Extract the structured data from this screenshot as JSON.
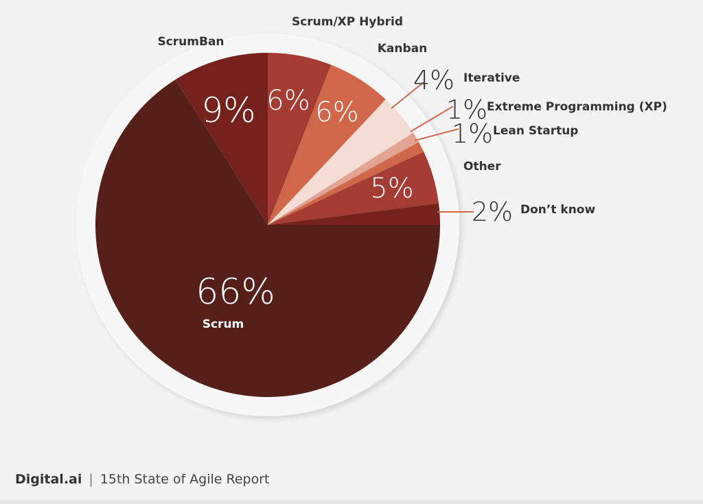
{
  "chart_data": {
    "type": "pie",
    "title": "",
    "start_angle": "3 o'clock",
    "direction": "clockwise",
    "slices": [
      {
        "name": "Scrum",
        "value": 66,
        "label": "66%",
        "color": "#561f1a"
      },
      {
        "name": "ScrumBan",
        "value": 9,
        "label": "9%",
        "color": "#75221c"
      },
      {
        "name": "Scrum/XP Hybrid",
        "value": 6,
        "label": "6%",
        "color": "#a43c34"
      },
      {
        "name": "Kanban",
        "value": 6,
        "label": "6%",
        "color": "#d0674b"
      },
      {
        "name": "Iterative",
        "value": 4,
        "label": "4%",
        "color": "#f5ddd6"
      },
      {
        "name": "Extreme Programming (XP)",
        "value": 1,
        "label": "1%",
        "color": "#e2a392"
      },
      {
        "name": "Lean Startup",
        "value": 1,
        "label": "1%",
        "color": "#d0674b"
      },
      {
        "name": "Other",
        "value": 5,
        "label": "5%",
        "color": "#a43c34"
      },
      {
        "name": "Don’t know",
        "value": 2,
        "label": "2%",
        "color": "#75221c"
      }
    ],
    "leader_color": "#d0674b"
  },
  "footer": {
    "brand": "Digital.ai",
    "separator": "|",
    "report": "15th State of Agile Report"
  }
}
